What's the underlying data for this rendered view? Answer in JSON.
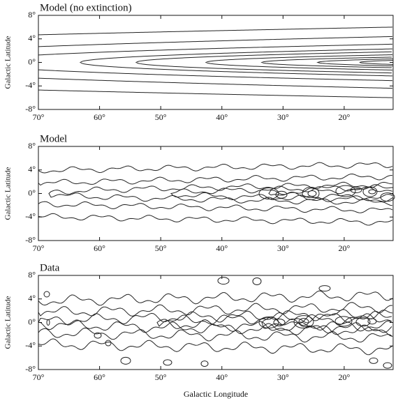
{
  "chart_data": [
    {
      "type": "contour",
      "title": "Model (no extinction)",
      "ylabel": "Galactic Latitude",
      "xlim": [
        70,
        12
      ],
      "ylim": [
        -8,
        8
      ],
      "xticks": [
        {
          "value": 70,
          "label": "70°"
        },
        {
          "value": 60,
          "label": "60°"
        },
        {
          "value": 50,
          "label": "50°"
        },
        {
          "value": 40,
          "label": "40°"
        },
        {
          "value": 30,
          "label": "30°"
        },
        {
          "value": 20,
          "label": "20°"
        }
      ],
      "yticks": [
        {
          "value": 8,
          "label": "8°"
        },
        {
          "value": 4,
          "label": "4°"
        },
        {
          "value": 0,
          "label": "0°"
        },
        {
          "value": -4,
          "label": "-4°"
        },
        {
          "value": -8,
          "label": "-8°"
        }
      ]
    },
    {
      "type": "contour",
      "title": "Model",
      "ylabel": "Galactic Latitude",
      "xlim": [
        70,
        12
      ],
      "ylim": [
        -8,
        8
      ],
      "xticks": [
        {
          "value": 70,
          "label": "70°"
        },
        {
          "value": 60,
          "label": "60°"
        },
        {
          "value": 50,
          "label": "50°"
        },
        {
          "value": 40,
          "label": "40°"
        },
        {
          "value": 30,
          "label": "30°"
        },
        {
          "value": 20,
          "label": "20°"
        }
      ],
      "yticks": [
        {
          "value": 8,
          "label": "8°"
        },
        {
          "value": 4,
          "label": "4°"
        },
        {
          "value": 0,
          "label": "0°"
        },
        {
          "value": -4,
          "label": "-4°"
        },
        {
          "value": -8,
          "label": "-8°"
        }
      ]
    },
    {
      "type": "contour",
      "title": "Data",
      "ylabel": "Galactic Latitude",
      "xlabel": "Galactic Longitude",
      "xlim": [
        70,
        12
      ],
      "ylim": [
        -8,
        8
      ],
      "xticks": [
        {
          "value": 70,
          "label": "70°"
        },
        {
          "value": 60,
          "label": "60°"
        },
        {
          "value": 50,
          "label": "50°"
        },
        {
          "value": 40,
          "label": "40°"
        },
        {
          "value": 30,
          "label": "30°"
        },
        {
          "value": 20,
          "label": "20°"
        }
      ],
      "yticks": [
        {
          "value": 8,
          "label": "8°"
        },
        {
          "value": 4,
          "label": "4°"
        },
        {
          "value": 0,
          "label": "0°"
        },
        {
          "value": -4,
          "label": "-4°"
        },
        {
          "value": -8,
          "label": "-8°"
        }
      ]
    }
  ]
}
